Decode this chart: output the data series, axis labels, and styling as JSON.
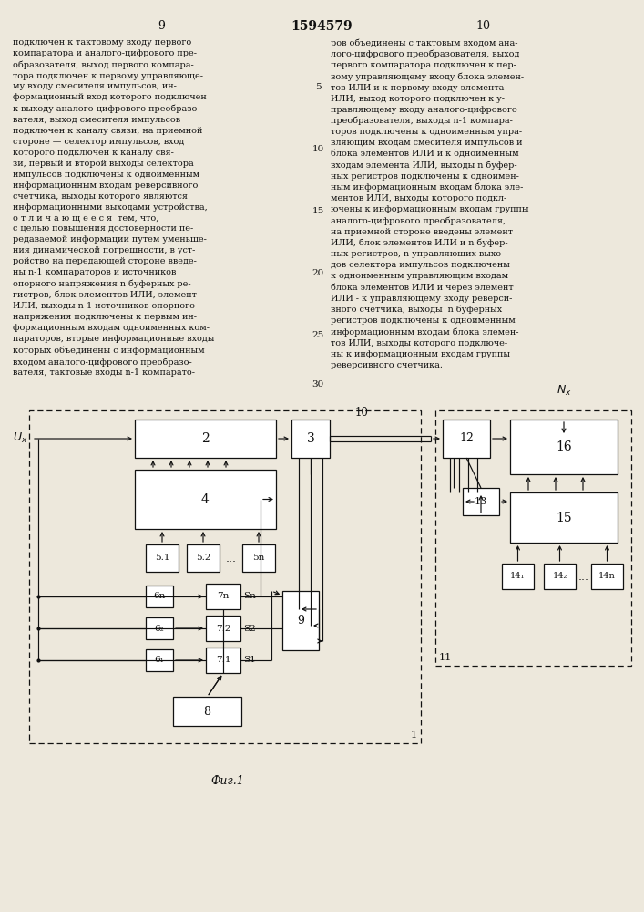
{
  "title": "1594579",
  "page_left": "9",
  "page_right": "10",
  "fig_label": "Фиг.1",
  "bg_color": "#ede8dc",
  "text_color": "#111111",
  "text_left": "подключен к тактовому входу первого\nкомпаратора и аналого-цифрового пре-\nобразователя, выход первого компара-\nтора подключен к первому управляюще-\nму входу смесителя импульсов, ин-\nформационный вход которого подключен\nк выходу аналого-цифрового преобразо-\nвателя, выход смесителя импульсов\nподключен к каналу связи, на приемной\nстороне — селектор импульсов, вход\nкоторого подключен к каналу свя-\nзи, первый и второй выходы селектора\nимпульсов подключены к одноименным\nинформационным входам реверсивного\nсчетчика, выходы которого являются\nинформационными выходами устройства,\nо т л и ч а ю щ е е с я  тем, что,\nс целью повышения достоверности пе-\nредаваемой информации путем уменьше-\nния динамической погрешности, в уст-\nройство на передающей стороне введе-\nны n-1 компараторов и источников\nопорного напряжения n буферных ре-\nгистров, блок элементов ИЛИ, элемент\nИЛИ, выходы n-1 источников опорного\nнапряжения подключены к первым ин-\nформационным входам одноименных ком-\nпараторов, вторые информационные входы\nкоторых объединены с информационным\nвходом аналого-цифрового преобразо-\nвателя, тактовые входы n-1 компарато-",
  "text_right": "ров объединены с тактовым входом ана-\nлого-цифрового преобразователя, выход\nпервого компаратора подключен к пер-\nвому управляющему входу блока элемен-\nтов ИЛИ и к первому входу элемента\nИЛИ, выход которого подключен к у-\nправляющему входу аналого-цифрового\nпреобразователя, выходы n-1 компара-\nторов подключены к одноименным упра-\nвляющим входам смесителя импульсов и\nблока элементов ИЛИ и к одноименным\nвходам элемента ИЛИ, выходы n буфер-\nных регистров подключены к одноимен-\nным информационным входам блока эле-\nментов ИЛИ, выходы которого подкл-\nючены к информационным входам группы\nаналого-цифрового преобразователя,\nна приемной стороне введены элемент\nИЛИ, блок элементов ИЛИ и n буфер-\nных регистров, n управляющих выхо-\nдов селектора импульсов подключены\nк одноименным управляющим входам\nблока элементов ИЛИ и через элемент\nИЛИ - к управляющему входу реверси-\nвного счетчика, выходы  n буферных\nрегистров подключены к одноименным\nинформационным входам блока элемен-\nтов ИЛИ, выходы которого подключе-\nны к информационным входам группы\nреверсивного счетчика.",
  "line_numbers": [
    "5",
    "10",
    "15",
    "20",
    "25",
    "30"
  ]
}
